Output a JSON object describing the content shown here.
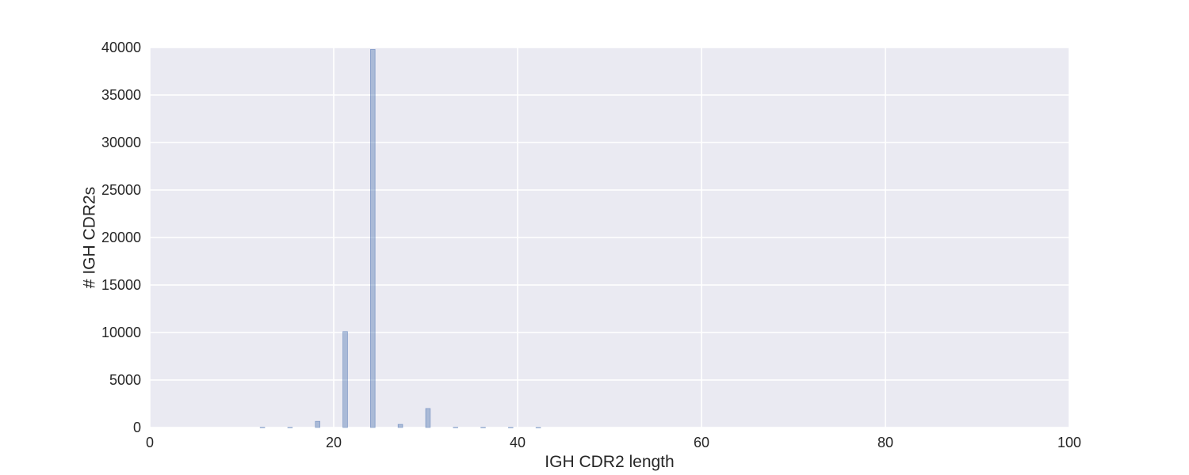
{
  "chart_data": {
    "type": "bar",
    "title": "",
    "xlabel": "IGH CDR2 length",
    "ylabel": "# IGH CDR2s",
    "xlim": [
      0,
      100
    ],
    "ylim": [
      0,
      40000
    ],
    "xticks": [
      0,
      20,
      40,
      60,
      80,
      100
    ],
    "yticks": [
      0,
      5000,
      10000,
      15000,
      20000,
      25000,
      30000,
      35000,
      40000
    ],
    "grid": true,
    "bin_width": 0.5,
    "bar_color": "#4c72b0",
    "bar_opacity": 0.4,
    "background_color": "#eaeaf2",
    "grid_color": "#ffffff",
    "bins": [
      {
        "x": 12,
        "value": 20
      },
      {
        "x": 15,
        "value": 15
      },
      {
        "x": 18,
        "value": 650
      },
      {
        "x": 21,
        "value": 10100
      },
      {
        "x": 24,
        "value": 39800
      },
      {
        "x": 27,
        "value": 330
      },
      {
        "x": 30,
        "value": 2000
      },
      {
        "x": 33,
        "value": 20
      },
      {
        "x": 36,
        "value": 15
      },
      {
        "x": 39,
        "value": 10
      },
      {
        "x": 42,
        "value": 5
      }
    ]
  }
}
